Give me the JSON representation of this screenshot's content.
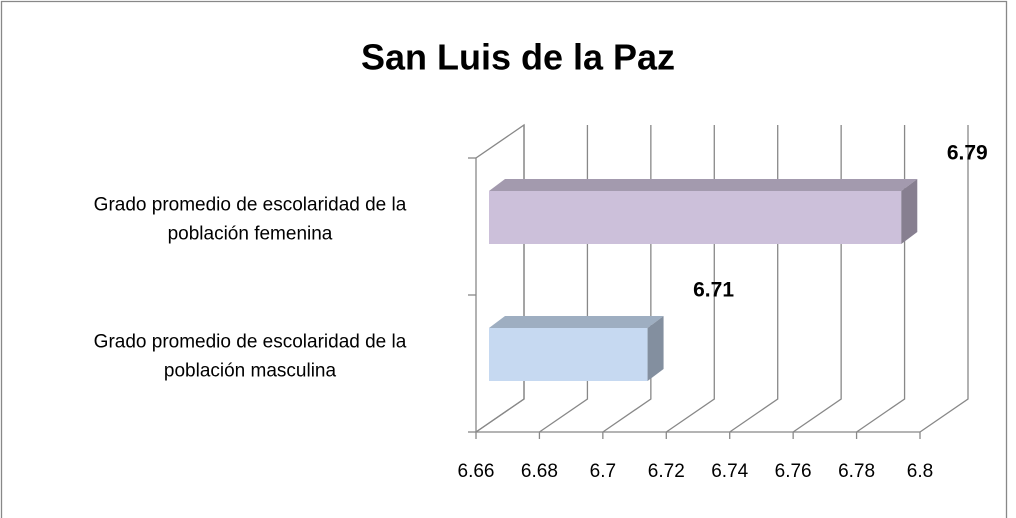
{
  "chart_data": {
    "type": "bar3d_horizontal",
    "title": "San Luis de la Paz",
    "categories": [
      "Grado promedio de escolaridad de la población masculina",
      "Grado promedio de escolaridad de la población femenina"
    ],
    "values": [
      6.71,
      6.79
    ],
    "colors": [
      "#c6d9f1",
      "#ccc0da"
    ],
    "xlim": [
      6.66,
      6.8
    ],
    "xticks": [
      6.66,
      6.68,
      6.7,
      6.72,
      6.74,
      6.76,
      6.78,
      6.8
    ],
    "grid": true
  }
}
